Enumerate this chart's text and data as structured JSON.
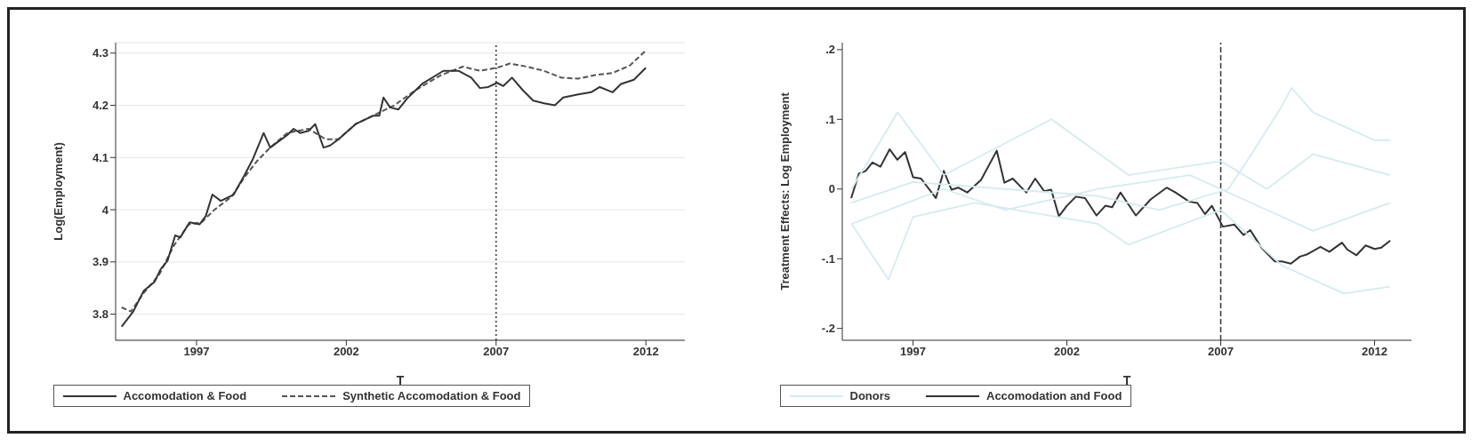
{
  "chart_data": [
    {
      "type": "line",
      "xlabel": "T",
      "ylabel": "Log(Employment)",
      "xlim": [
        1994.3,
        2013.3
      ],
      "ylim": [
        3.75,
        4.32
      ],
      "xticks": [
        1997,
        2002,
        2007,
        2012
      ],
      "yticks": [
        {
          "value": 3.8,
          "label": "3.8"
        },
        {
          "value": 3.9,
          "label": "3.9"
        },
        {
          "value": 4,
          "label": "4"
        },
        {
          "value": 4.1,
          "label": "4.1"
        },
        {
          "value": 4.2,
          "label": "4.2"
        },
        {
          "value": 4.3,
          "label": "4.3"
        }
      ],
      "grid": "y",
      "legend": "bottom",
      "ref_lines": [
        {
          "axis": "x",
          "value": 2007,
          "line_style": "dotted",
          "color": "#333333"
        }
      ],
      "series": [
        {
          "name": "Accomodation & Food",
          "color": "#333333",
          "line_style": "solid",
          "x": [
            1994.5,
            1994.89,
            1995.24,
            1995.6,
            1995.8,
            1996.03,
            1996.29,
            1996.46,
            1996.77,
            1997.1,
            1997.31,
            1997.53,
            1997.81,
            1998.24,
            1998.6,
            1998.89,
            1999.24,
            1999.46,
            1999.74,
            2000.03,
            2000.24,
            2000.46,
            2000.74,
            2000.96,
            2001.24,
            2001.46,
            2001.74,
            2002.31,
            2002.89,
            2003.1,
            2003.24,
            2003.46,
            2003.74,
            2004.03,
            2004.53,
            2005.24,
            2005.74,
            2006.17,
            2006.46,
            2006.74,
            2007.03,
            2007.24,
            2007.53,
            2007.89,
            2008.24,
            2008.6,
            2008.96,
            2009.24,
            2009.74,
            2010.17,
            2010.46,
            2010.89,
            2011.17,
            2011.6,
            2012
          ],
          "values": [
            3.776,
            3.805,
            3.845,
            3.862,
            3.886,
            3.902,
            3.951,
            3.947,
            3.976,
            3.972,
            3.988,
            4.029,
            4.017,
            4.029,
            4.066,
            4.098,
            4.147,
            4.119,
            4.131,
            4.143,
            4.155,
            4.147,
            4.151,
            4.164,
            4.119,
            4.123,
            4.135,
            4.164,
            4.18,
            4.18,
            4.215,
            4.196,
            4.192,
            4.213,
            4.241,
            4.266,
            4.266,
            4.253,
            4.233,
            4.235,
            4.243,
            4.237,
            4.253,
            4.229,
            4.209,
            4.204,
            4.2,
            4.215,
            4.221,
            4.225,
            4.235,
            4.225,
            4.241,
            4.249,
            4.272
          ]
        },
        {
          "name": "Synthetic Accomodation & Food",
          "color": "#555555",
          "line_style": "dashed",
          "x": [
            1994.5,
            1994.81,
            1995.24,
            1995.74,
            1996.24,
            1996.74,
            1997.17,
            1997.6,
            1998.17,
            1998.6,
            1999.03,
            1999.46,
            2000.03,
            2000.74,
            2001.31,
            2001.74,
            2002.31,
            2003.03,
            2003.6,
            2004.31,
            2005.17,
            2005.89,
            2006.46,
            2007.03,
            2007.46,
            2008.03,
            2008.6,
            2009.17,
            2009.74,
            2010.31,
            2010.89,
            2011.46,
            2012
          ],
          "values": [
            3.813,
            3.805,
            3.841,
            3.874,
            3.931,
            3.972,
            3.976,
            4.0,
            4.025,
            4.062,
            4.094,
            4.119,
            4.147,
            4.155,
            4.135,
            4.135,
            4.164,
            4.184,
            4.2,
            4.229,
            4.258,
            4.274,
            4.266,
            4.272,
            4.28,
            4.274,
            4.266,
            4.253,
            4.251,
            4.258,
            4.262,
            4.276,
            4.305
          ]
        }
      ]
    },
    {
      "type": "line",
      "xlabel": "T",
      "ylabel": "Treatment Effects: Log Employment",
      "xlim": [
        1994.7,
        2013.2
      ],
      "ylim": [
        -0.217,
        0.21
      ],
      "xticks": [
        1997,
        2002,
        2007,
        2012
      ],
      "yticks": [
        {
          "value": -0.2,
          "label": "-.2"
        },
        {
          "value": -0.1,
          "label": "-.1"
        },
        0,
        {
          "value": 0.1,
          "label": ".1"
        },
        {
          "value": 0.2,
          "label": ".2"
        }
      ],
      "grid": false,
      "legend": "bottom",
      "ref_lines": [
        {
          "axis": "x",
          "value": 2007,
          "line_style": "dashed",
          "color": "#333333"
        }
      ],
      "series": [
        {
          "name": "Donors",
          "color": "#d6ebee",
          "line_style": "solid",
          "x": [
            1994.99,
            1997,
            2000,
            2003,
            2005,
            2007.25,
            2008,
            2009,
            2009.3,
            2010,
            2011,
            2012,
            2012.5
          ],
          "values": [
            -0.02,
            0.01,
            0.0,
            -0.01,
            -0.03,
            0.0,
            0.05,
            0.12,
            0.145,
            0.11,
            0.09,
            0.07,
            0.07
          ]
        },
        {
          "color": "#d6ebee",
          "line_style": "solid",
          "x": [
            1995,
            1996.2,
            1997,
            1999,
            2003,
            2004,
            2007,
            2009,
            2011,
            2012.5
          ],
          "values": [
            -0.05,
            -0.13,
            -0.04,
            -0.02,
            -0.05,
            -0.08,
            -0.03,
            -0.11,
            -0.15,
            -0.14
          ]
        },
        {
          "color": "#d6ebee",
          "line_style": "solid",
          "x": [
            1995,
            1996.5,
            1998,
            2001.5,
            2004,
            2007,
            2008.5,
            2010,
            2012.5
          ],
          "values": [
            0.0,
            0.11,
            0.02,
            0.1,
            0.02,
            0.04,
            0.0,
            0.05,
            0.02
          ]
        },
        {
          "color": "#d6ebee",
          "line_style": "solid",
          "x": [
            1995,
            1998,
            2000,
            2003,
            2006,
            2008,
            2010,
            2012.5
          ],
          "values": [
            -0.05,
            0.0,
            -0.03,
            0.0,
            0.02,
            -0.02,
            -0.06,
            -0.02
          ]
        },
        {
          "name": "Accomodation and Food",
          "color": "#333333",
          "line_style": "solid",
          "x": [
            1994.99,
            1995.24,
            1995.46,
            1995.68,
            1995.94,
            1996.24,
            1996.49,
            1996.74,
            1997.0,
            1997.26,
            1997.74,
            1998.0,
            1998.25,
            1998.47,
            1998.76,
            1999.21,
            1999.72,
            1999.97,
            2000.24,
            2000.68,
            2000.97,
            2001.26,
            2001.49,
            2001.74,
            2002.0,
            2002.29,
            2002.59,
            2002.96,
            2003.25,
            2003.47,
            2003.74,
            2004.24,
            2004.72,
            2005.24,
            2005.53,
            2005.97,
            2006.24,
            2006.49,
            2006.71,
            2007.07,
            2007.44,
            2007.74,
            2007.96,
            2008.32,
            2008.76,
            2008.99,
            2009.28,
            2009.57,
            2009.79,
            2010.24,
            2010.53,
            2010.94,
            2011.12,
            2011.41,
            2011.71,
            2012.0,
            2012.22,
            2012.51
          ],
          "values": [
            -0.013,
            0.022,
            0.026,
            0.038,
            0.032,
            0.057,
            0.042,
            0.053,
            0.017,
            0.015,
            -0.013,
            0.026,
            -0.001,
            0.002,
            -0.005,
            0.013,
            0.055,
            0.009,
            0.015,
            -0.005,
            0.015,
            -0.003,
            -0.001,
            -0.039,
            -0.024,
            -0.011,
            -0.013,
            -0.038,
            -0.024,
            -0.026,
            -0.005,
            -0.038,
            -0.015,
            0.002,
            -0.005,
            -0.018,
            -0.02,
            -0.036,
            -0.024,
            -0.054,
            -0.051,
            -0.066,
            -0.059,
            -0.084,
            -0.104,
            -0.104,
            -0.107,
            -0.097,
            -0.094,
            -0.083,
            -0.09,
            -0.077,
            -0.087,
            -0.095,
            -0.081,
            -0.086,
            -0.084,
            -0.074
          ]
        }
      ]
    }
  ]
}
